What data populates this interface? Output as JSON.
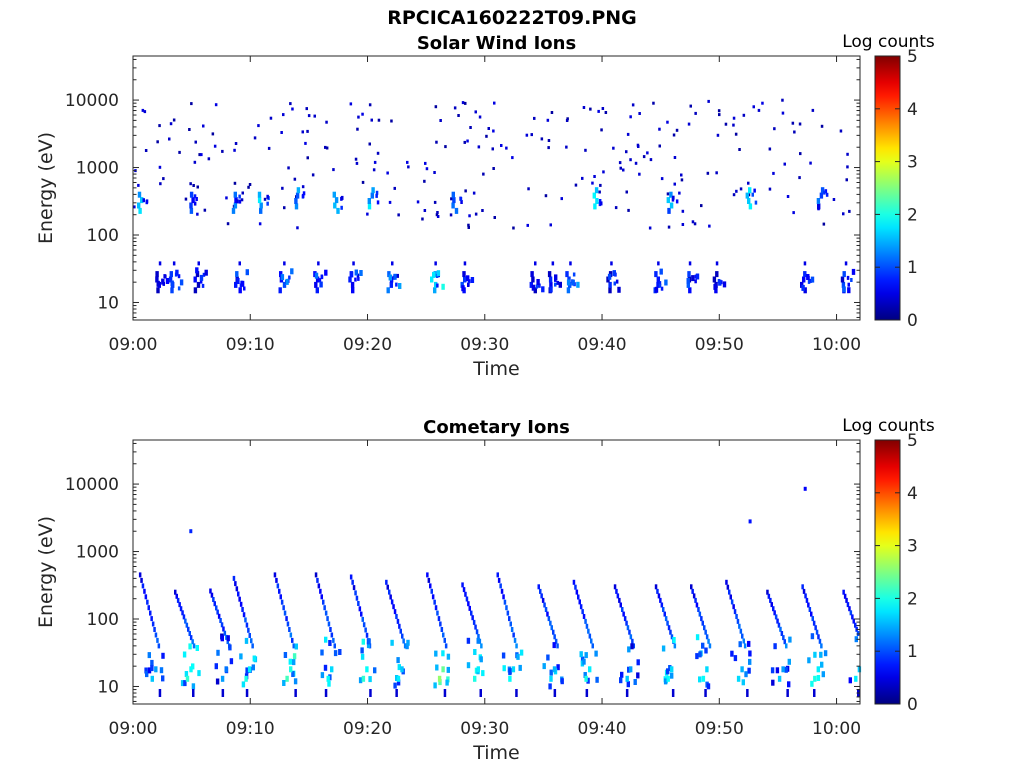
{
  "figure": {
    "filename": "RPCICA160222T09.PNG"
  },
  "colorbar": {
    "label": "Log counts",
    "ticks": [
      "0",
      "1",
      "2",
      "3",
      "4",
      "5"
    ],
    "range": [
      0,
      5
    ],
    "colormap": "jet"
  },
  "chart_data": [
    {
      "type": "heatmap",
      "title": "Solar Wind Ions",
      "xlabel": "Time",
      "ylabel": "Energy (eV)",
      "x_ticks": [
        "09:00",
        "09:10",
        "09:20",
        "09:30",
        "09:40",
        "09:50",
        "10:00"
      ],
      "y_ticks": [
        "10",
        "100",
        "1000",
        "10000"
      ],
      "y_scale": "log",
      "ylim": [
        5.5,
        45000
      ],
      "xlim_minutes": [
        0,
        62
      ],
      "bursts": [
        {
          "t": 0.5,
          "e": 300,
          "c": 2.0
        },
        {
          "t": 2.0,
          "e": 20,
          "c": 1.0
        },
        {
          "t": 3.2,
          "e": 20,
          "c": 1.3
        },
        {
          "t": 4.8,
          "e": 300,
          "c": 1.4
        },
        {
          "t": 5.3,
          "e": 20,
          "c": 0.9
        },
        {
          "t": 8.5,
          "e": 300,
          "c": 1.4
        },
        {
          "t": 8.8,
          "e": 20,
          "c": 1.1
        },
        {
          "t": 10.8,
          "e": 300,
          "c": 1.8
        },
        {
          "t": 12.6,
          "e": 20,
          "c": 1.4
        },
        {
          "t": 13.8,
          "e": 350,
          "c": 1.9
        },
        {
          "t": 15.5,
          "e": 20,
          "c": 1.2
        },
        {
          "t": 17.2,
          "e": 300,
          "c": 1.6
        },
        {
          "t": 18.5,
          "e": 20,
          "c": 1.3
        },
        {
          "t": 20.2,
          "e": 350,
          "c": 2.0
        },
        {
          "t": 21.8,
          "e": 20,
          "c": 1.5
        },
        {
          "t": 25.5,
          "e": 20,
          "c": 2.0
        },
        {
          "t": 27.3,
          "e": 300,
          "c": 1.2
        },
        {
          "t": 28.0,
          "e": 20,
          "c": 1.2
        },
        {
          "t": 34.0,
          "e": 20,
          "c": 1.0
        },
        {
          "t": 35.5,
          "e": 20,
          "c": 0.9
        },
        {
          "t": 37.0,
          "e": 20,
          "c": 1.6
        },
        {
          "t": 39.3,
          "e": 350,
          "c": 2.0
        },
        {
          "t": 40.5,
          "e": 20,
          "c": 1.0
        },
        {
          "t": 44.5,
          "e": 20,
          "c": 1.2
        },
        {
          "t": 45.6,
          "e": 300,
          "c": 1.8
        },
        {
          "t": 47.2,
          "e": 20,
          "c": 1.1
        },
        {
          "t": 49.5,
          "e": 20,
          "c": 1.0
        },
        {
          "t": 52.4,
          "e": 350,
          "c": 1.9
        },
        {
          "t": 57.0,
          "e": 20,
          "c": 1.3
        },
        {
          "t": 58.5,
          "e": 350,
          "c": 1.3
        },
        {
          "t": 60.5,
          "e": 20,
          "c": 1.2
        }
      ]
    },
    {
      "type": "heatmap",
      "title": "Cometary Ions",
      "xlabel": "Time",
      "ylabel": "Energy (eV)",
      "x_ticks": [
        "09:00",
        "09:10",
        "09:20",
        "09:30",
        "09:40",
        "09:50",
        "10:00"
      ],
      "y_ticks": [
        "10",
        "100",
        "1000",
        "10000"
      ],
      "y_scale": "log",
      "ylim": [
        5.5,
        45000
      ],
      "xlim_minutes": [
        0,
        62
      ],
      "isolated_points": [
        {
          "t": 4.8,
          "e": 2000,
          "c": 0.8
        },
        {
          "t": 52.5,
          "e": 2800,
          "c": 0.7
        },
        {
          "t": 57.2,
          "e": 8500,
          "c": 0.6
        }
      ],
      "bursts": [
        {
          "t": 0.5,
          "e_low": 8,
          "e_high": 450,
          "c": 1.6
        },
        {
          "t": 3.5,
          "e_low": 8,
          "e_high": 250,
          "c": 2.1
        },
        {
          "t": 6.5,
          "e_low": 8,
          "e_high": 260,
          "c": 1.4
        },
        {
          "t": 8.5,
          "e_low": 8,
          "e_high": 400,
          "c": 2.0
        },
        {
          "t": 12.0,
          "e_low": 8,
          "e_high": 450,
          "c": 2.2
        },
        {
          "t": 15.5,
          "e_low": 8,
          "e_high": 450,
          "c": 1.9
        },
        {
          "t": 18.5,
          "e_low": 8,
          "e_high": 420,
          "c": 2.1
        },
        {
          "t": 21.5,
          "e_low": 8,
          "e_high": 350,
          "c": 1.8
        },
        {
          "t": 25.0,
          "e_low": 8,
          "e_high": 450,
          "c": 2.6
        },
        {
          "t": 28.0,
          "e_low": 8,
          "e_high": 320,
          "c": 2.0
        },
        {
          "t": 31.0,
          "e_low": 8,
          "e_high": 450,
          "c": 1.9
        },
        {
          "t": 34.5,
          "e_low": 8,
          "e_high": 300,
          "c": 1.7
        },
        {
          "t": 37.5,
          "e_low": 8,
          "e_high": 350,
          "c": 2.0
        },
        {
          "t": 41.0,
          "e_low": 8,
          "e_high": 300,
          "c": 1.6
        },
        {
          "t": 44.5,
          "e_low": 8,
          "e_high": 300,
          "c": 1.9
        },
        {
          "t": 47.5,
          "e_low": 8,
          "e_high": 300,
          "c": 1.9
        },
        {
          "t": 50.5,
          "e_low": 8,
          "e_high": 350,
          "c": 1.7
        },
        {
          "t": 54.0,
          "e_low": 8,
          "e_high": 250,
          "c": 1.6
        },
        {
          "t": 57.0,
          "e_low": 8,
          "e_high": 300,
          "c": 2.0
        },
        {
          "t": 60.5,
          "e_low": 8,
          "e_high": 250,
          "c": 1.8
        }
      ]
    }
  ]
}
